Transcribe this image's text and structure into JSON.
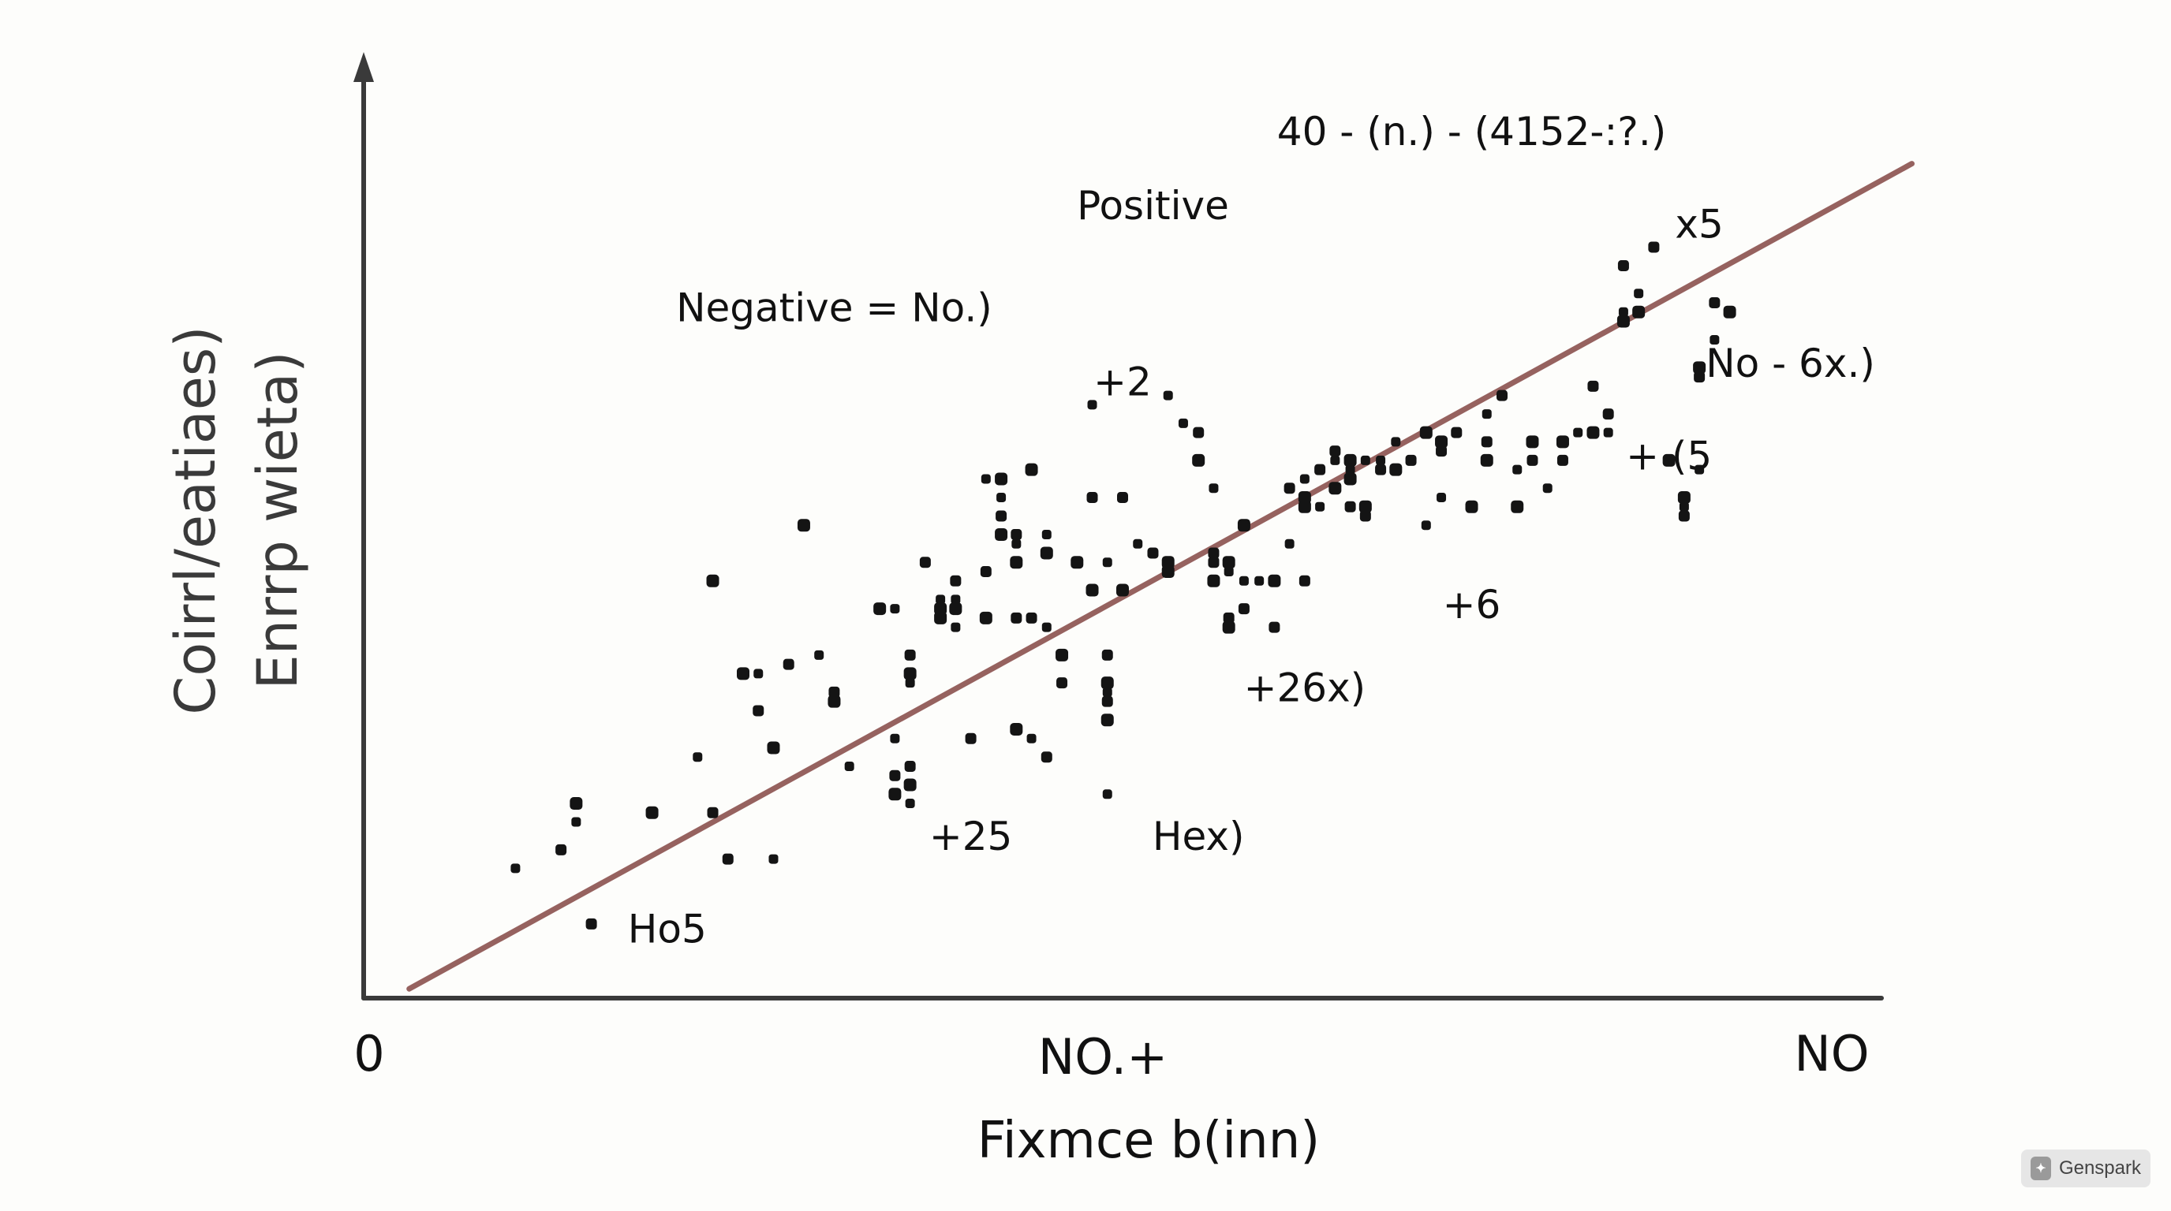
{
  "chart_data": {
    "type": "scatter",
    "title": "",
    "xlabel": "Fixmce b(inn)",
    "ylabel_lines": [
      "Coirrl/eatiaes)",
      "Enrrp wieta)"
    ],
    "x_tick_labels": [
      "0",
      "NO.+",
      "NO"
    ],
    "xlim": [
      0,
      100
    ],
    "ylim": [
      0,
      100
    ],
    "trendline": {
      "points": [
        [
          3,
          1
        ],
        [
          102,
          90
        ]
      ],
      "color": "#96625f"
    },
    "annotations": [
      {
        "text": "Positive",
        "x": 52,
        "y": 84
      },
      {
        "text": "Negative = No.)",
        "x": 31,
        "y": 73
      },
      {
        "text": "+2",
        "x": 50,
        "y": 65
      },
      {
        "text": "40 - (n.) - (4152-:?.)",
        "x": 73,
        "y": 92
      },
      {
        "text": "x5",
        "x": 88,
        "y": 82
      },
      {
        "text": "No - 6x.)",
        "x": 94,
        "y": 67
      },
      {
        "text": "+ (5",
        "x": 86,
        "y": 57
      },
      {
        "text": "+6",
        "x": 73,
        "y": 41
      },
      {
        "text": "+26x)",
        "x": 62,
        "y": 32
      },
      {
        "text": "+25",
        "x": 40,
        "y": 16
      },
      {
        "text": "Hex)",
        "x": 55,
        "y": 16
      },
      {
        "text": "Ho5",
        "x": 20,
        "y": 6
      }
    ],
    "points": [
      [
        10,
        14
      ],
      [
        13,
        16
      ],
      [
        14,
        21
      ],
      [
        14,
        19
      ],
      [
        15,
        8
      ],
      [
        19,
        20
      ],
      [
        22,
        26
      ],
      [
        23,
        20
      ],
      [
        23,
        45
      ],
      [
        24,
        15
      ],
      [
        24,
        15
      ],
      [
        25,
        35
      ],
      [
        26,
        35
      ],
      [
        26,
        31
      ],
      [
        27,
        27
      ],
      [
        27,
        15
      ],
      [
        28,
        36
      ],
      [
        29,
        51
      ],
      [
        30,
        37
      ],
      [
        31,
        33
      ],
      [
        31,
        32
      ],
      [
        32,
        25
      ],
      [
        34,
        42
      ],
      [
        34,
        42
      ],
      [
        35,
        42
      ],
      [
        35,
        24
      ],
      [
        35,
        22
      ],
      [
        35,
        28
      ],
      [
        36,
        37
      ],
      [
        36,
        35
      ],
      [
        36,
        34
      ],
      [
        36,
        25
      ],
      [
        36,
        23
      ],
      [
        36,
        21
      ],
      [
        37,
        47
      ],
      [
        38,
        42
      ],
      [
        38,
        43
      ],
      [
        38,
        42
      ],
      [
        38,
        41
      ],
      [
        39,
        43
      ],
      [
        39,
        45
      ],
      [
        39,
        42
      ],
      [
        39,
        40
      ],
      [
        40,
        28
      ],
      [
        41,
        41
      ],
      [
        41,
        56
      ],
      [
        41,
        46
      ],
      [
        42,
        56
      ],
      [
        42,
        54
      ],
      [
        42,
        52
      ],
      [
        42,
        50
      ],
      [
        43,
        49
      ],
      [
        43,
        50
      ],
      [
        43,
        47
      ],
      [
        43,
        47
      ],
      [
        43,
        41
      ],
      [
        43,
        29
      ],
      [
        44,
        28
      ],
      [
        44,
        41
      ],
      [
        44,
        57
      ],
      [
        45,
        50
      ],
      [
        45,
        48
      ],
      [
        45,
        48
      ],
      [
        45,
        40
      ],
      [
        45,
        26
      ],
      [
        46,
        37
      ],
      [
        46,
        34
      ],
      [
        46,
        34
      ],
      [
        47,
        47
      ],
      [
        48,
        64
      ],
      [
        48,
        54
      ],
      [
        48,
        44
      ],
      [
        49,
        47
      ],
      [
        49,
        37
      ],
      [
        49,
        34
      ],
      [
        49,
        33
      ],
      [
        49,
        32
      ],
      [
        49,
        30
      ],
      [
        49,
        22
      ],
      [
        50,
        54
      ],
      [
        50,
        44
      ],
      [
        51,
        49
      ],
      [
        52,
        48
      ],
      [
        53,
        47
      ],
      [
        53,
        65
      ],
      [
        53,
        46
      ],
      [
        53,
        46
      ],
      [
        54,
        62
      ],
      [
        55,
        61
      ],
      [
        55,
        58
      ],
      [
        56,
        55
      ],
      [
        56,
        47
      ],
      [
        56,
        45
      ],
      [
        56,
        47
      ],
      [
        56,
        48
      ],
      [
        57,
        47
      ],
      [
        57,
        46
      ],
      [
        57,
        41
      ],
      [
        57,
        40
      ],
      [
        58,
        45
      ],
      [
        58,
        42
      ],
      [
        58,
        51
      ],
      [
        59,
        45
      ],
      [
        60,
        40
      ],
      [
        60,
        45
      ],
      [
        61,
        49
      ],
      [
        61,
        55
      ],
      [
        62,
        54
      ],
      [
        62,
        56
      ],
      [
        62,
        45
      ],
      [
        62,
        53
      ],
      [
        63,
        53
      ],
      [
        63,
        57
      ],
      [
        64,
        55
      ],
      [
        64,
        58
      ],
      [
        64,
        59
      ],
      [
        65,
        58
      ],
      [
        65,
        57
      ],
      [
        65,
        53
      ],
      [
        65,
        56
      ],
      [
        66,
        58
      ],
      [
        66,
        52
      ],
      [
        66,
        53
      ],
      [
        67,
        58
      ],
      [
        67,
        57
      ],
      [
        68,
        57
      ],
      [
        68,
        60
      ],
      [
        69,
        58
      ],
      [
        70,
        61
      ],
      [
        70,
        51
      ],
      [
        71,
        59
      ],
      [
        71,
        60
      ],
      [
        71,
        54
      ],
      [
        72,
        61
      ],
      [
        73,
        53
      ],
      [
        74,
        63
      ],
      [
        74,
        60
      ],
      [
        74,
        58
      ],
      [
        74,
        60
      ],
      [
        75,
        65
      ],
      [
        76,
        53
      ],
      [
        76,
        57
      ],
      [
        77,
        58
      ],
      [
        77,
        60
      ],
      [
        78,
        55
      ],
      [
        79,
        58
      ],
      [
        79,
        60
      ],
      [
        80,
        61
      ],
      [
        81,
        66
      ],
      [
        81,
        61
      ],
      [
        82,
        61
      ],
      [
        82,
        63
      ],
      [
        83,
        73
      ],
      [
        83,
        74
      ],
      [
        83,
        79
      ],
      [
        84,
        74
      ],
      [
        84,
        76
      ],
      [
        85,
        81
      ],
      [
        86,
        58
      ],
      [
        87,
        53
      ],
      [
        87,
        52
      ],
      [
        87,
        54
      ],
      [
        88,
        57
      ],
      [
        88,
        67
      ],
      [
        88,
        68
      ],
      [
        89,
        71
      ],
      [
        89,
        75
      ],
      [
        90,
        74
      ]
    ]
  }
}
